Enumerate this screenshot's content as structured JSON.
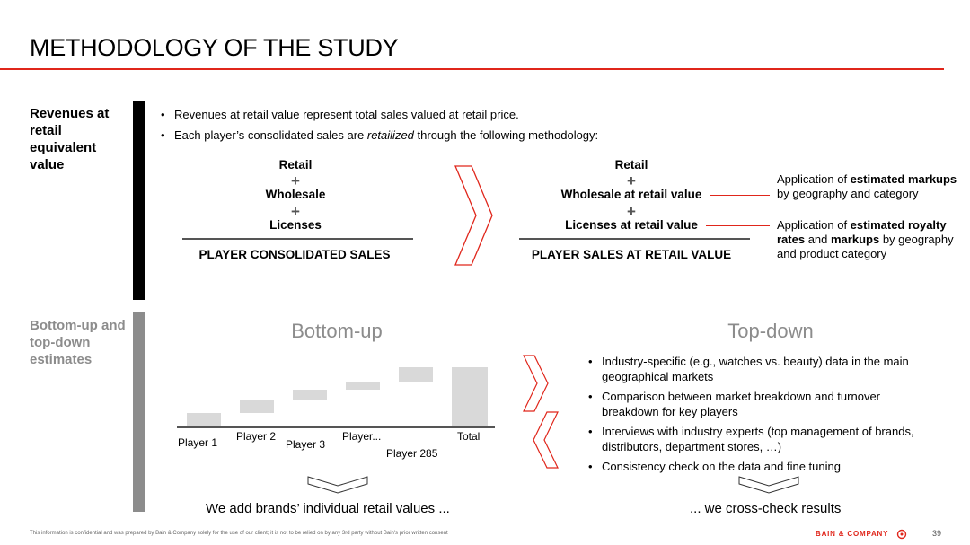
{
  "title": "METHODOLOGY OF THE STUDY",
  "sections": {
    "top_label": "Revenues at retail equivalent value",
    "bottom_label": "Bottom-up and top-down estimates"
  },
  "bullets": {
    "b1": "Revenues at retail value represent total sales valued at retail price.",
    "b2_pre": "Each player’s consolidated sales are ",
    "b2_em": "retailized",
    "b2_post": " through the following methodology:"
  },
  "left_formula": {
    "line1": "Retail",
    "line2": "Wholesale",
    "line3": "Licenses",
    "plus": "+",
    "total": "PLAYER CONSOLIDATED SALES"
  },
  "right_formula": {
    "line1": "Retail",
    "line2": "Wholesale at retail value",
    "line3": "Licenses at retail value",
    "plus": "+",
    "total": "PLAYER SALES AT RETAIL VALUE"
  },
  "notes": {
    "n1_a": "Application of ",
    "n1_b": "estimated markups",
    "n1_c": " by geography and category",
    "n2_a": "Application of ",
    "n2_b": "estimated royalty rates",
    "n2_c": " and ",
    "n2_d": "markups",
    "n2_e": " by geography and product category"
  },
  "bottom_up": {
    "title": "Bottom-up",
    "players": [
      "Player 1",
      "Player 2",
      "Player 3",
      "Player...",
      "Player 285",
      "Total"
    ],
    "conclusion": "We add brands’ individual retail values ..."
  },
  "top_down": {
    "title": "Top-down",
    "bullets": [
      "Industry-specific (e.g., watches vs. beauty) data in the main geographical markets",
      "Comparison between market breakdown and turnover breakdown for key players",
      "Interviews with industry experts (top management of brands, distributors, department stores, …)",
      "Consistency check on the data and fine tuning"
    ],
    "conclusion": "... we cross-check results"
  },
  "footer": {
    "disclaimer": "This information is confidential and was prepared by Bain & Company solely for the use of our client; it is not to be relied on by any 3rd party without Bain's prior written consent",
    "brand": "BAIN & COMPANY",
    "page": "39"
  },
  "colors": {
    "accent": "#e0261b",
    "gray": "#8c8c8c",
    "bar_fill": "#d9d9d9"
  }
}
